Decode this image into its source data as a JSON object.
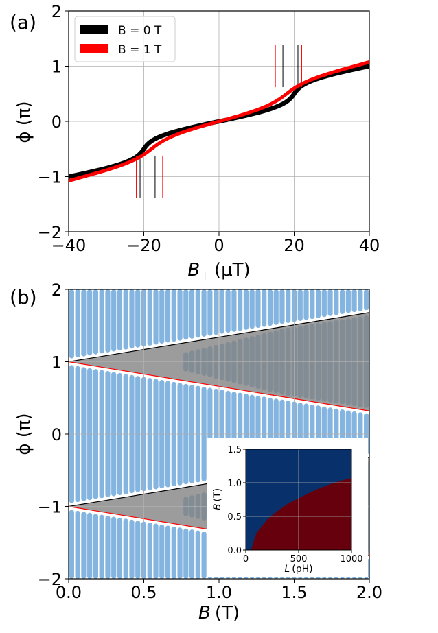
{
  "chart_data": [
    {
      "panel_label": "(a)",
      "type": "line",
      "xlabel": "B⊥ (μT)",
      "xlabel_main": "B",
      "xlabel_sub": "⊥",
      "xlabel_unit": "(μT)",
      "ylabel": "ϕ (π)",
      "xlim": [
        -40,
        40
      ],
      "ylim": [
        -2,
        2
      ],
      "xticks": [
        -40,
        -20,
        0,
        20,
        40
      ],
      "xtick_labels": [
        "−40",
        "−20",
        "0",
        "20",
        "40"
      ],
      "yticks": [
        -2,
        -1,
        0,
        1,
        2
      ],
      "ytick_labels": [
        "−2",
        "−1",
        "0",
        "1",
        "2"
      ],
      "grid": true,
      "legend_position": "top-left",
      "series": [
        {
          "name": "B = 0 T",
          "color": "#000000",
          "amplitude": 0.118,
          "period_field": 40,
          "vertical_jumps": [
            -21,
            -17,
            17,
            21
          ]
        },
        {
          "name": "B = 1 T",
          "color": "#ff0000",
          "amplitude": 0.075,
          "period_field": 36,
          "vertical_jumps": [
            -22,
            -15,
            15,
            22
          ]
        }
      ]
    },
    {
      "panel_label": "(b)",
      "type": "scatter",
      "xlabel": "B (T)",
      "xlabel_main": "B",
      "xlabel_unit": "(T)",
      "ylabel": "ϕ (π)",
      "xlim": [
        0,
        2
      ],
      "ylim": [
        -2,
        2
      ],
      "xticks": [
        0,
        0.5,
        1,
        1.5,
        2
      ],
      "xtick_labels": [
        "0.0",
        "0.5",
        "1.0",
        "1.5",
        "2.0"
      ],
      "yticks": [
        -2,
        -1,
        0,
        1,
        2
      ],
      "ytick_labels": [
        "−2",
        "−1",
        "0",
        "1",
        "2"
      ],
      "grid": true,
      "point_color": "#5b9bd5",
      "column_spacing_B": 0.04,
      "bands": [
        {
          "center": 1,
          "upper_edge_slope": 0.34,
          "lower_edge_slope": -0.34,
          "upper_edge_color": "#000000",
          "lower_edge_color": "#ff0000",
          "fill": "#808080"
        },
        {
          "center": -1,
          "upper_edge_slope": 0.34,
          "lower_edge_slope": -0.34,
          "upper_edge_color": "#000000",
          "lower_edge_color": "#ff0000",
          "fill": "#808080"
        }
      ],
      "inset": {
        "type": "heatmap",
        "xlabel": "L (pH)",
        "xlabel_main": "L",
        "xlabel_unit": "(pH)",
        "ylabel": "B (T)",
        "ylabel_main": "B",
        "ylabel_unit": "(T)",
        "xlim": [
          0,
          1000
        ],
        "ylim": [
          0,
          1.5
        ],
        "xticks": [
          0,
          500,
          1000
        ],
        "xtick_labels": [
          "0",
          "500",
          "1000"
        ],
        "yticks": [
          0,
          0.5,
          1,
          1.5
        ],
        "ytick_labels": [
          "0.0",
          "0.5",
          "1.0",
          "1.5"
        ],
        "grid": true,
        "region_colors": {
          "upper": "#08306b",
          "lower": "#67000d"
        },
        "boundary": [
          [
            50,
            0
          ],
          [
            100,
            0.25
          ],
          [
            200,
            0.45
          ],
          [
            300,
            0.58
          ],
          [
            400,
            0.69
          ],
          [
            500,
            0.77
          ],
          [
            600,
            0.85
          ],
          [
            700,
            0.92
          ],
          [
            800,
            0.98
          ],
          [
            900,
            1.03
          ],
          [
            1000,
            1.07
          ]
        ]
      }
    }
  ]
}
